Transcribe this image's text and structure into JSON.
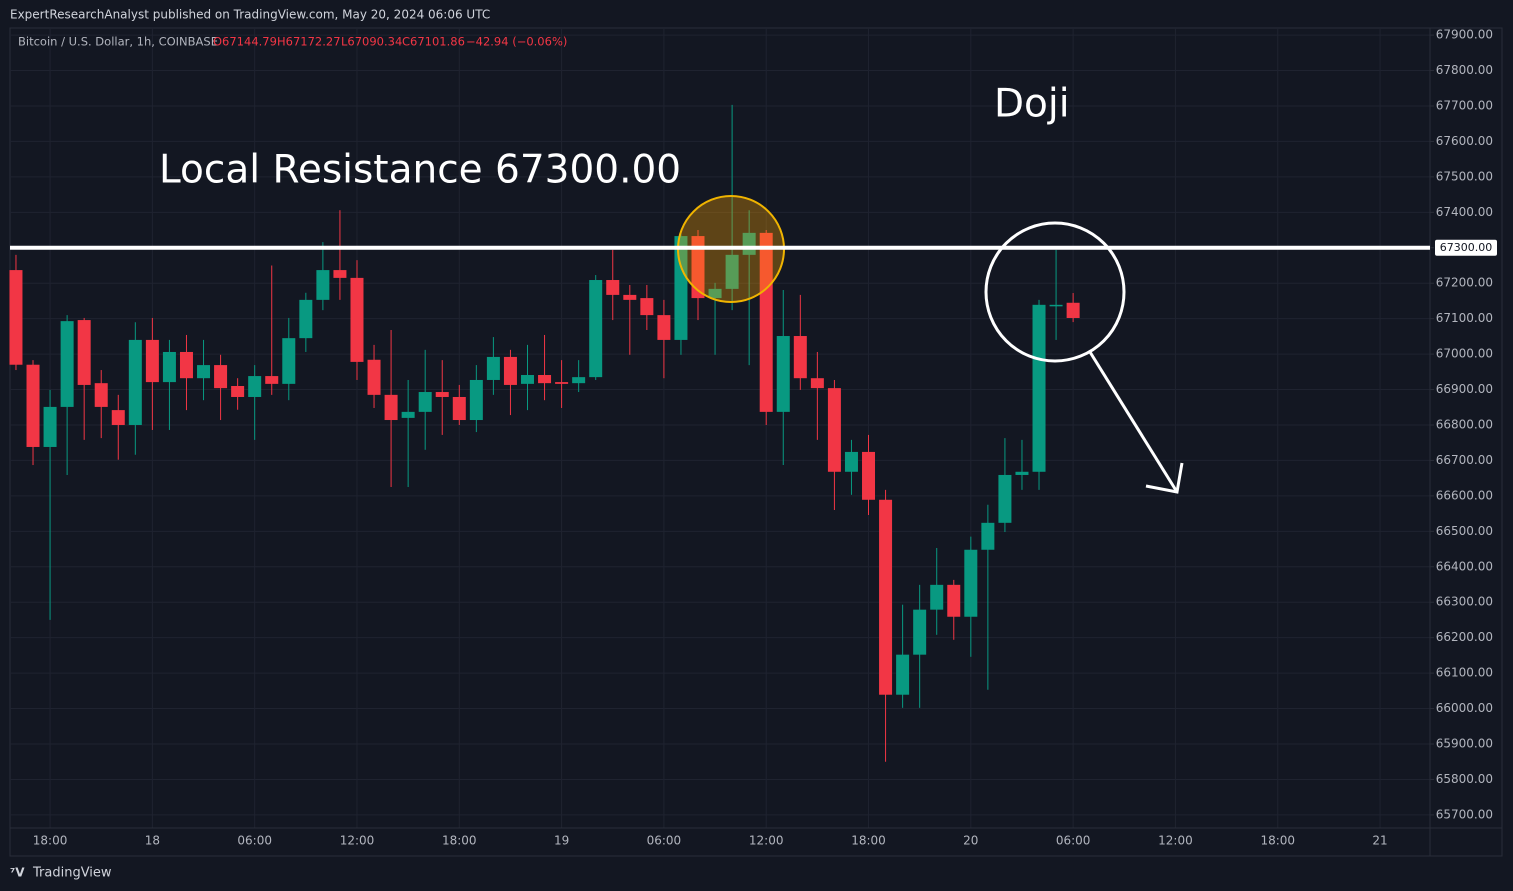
{
  "publisher": "ExpertResearchAnalyst published on TradingView.com, May 20, 2024 06:06 UTC",
  "brand": "TradingView",
  "chart_data": {
    "type": "candlestick",
    "symbol": "Bitcoin / U.S. Dollar, 1h, COINBASE",
    "ohlc_labels": [
      "O67144.79",
      "H67172.27",
      "L67090.34",
      "C67101.86",
      "−42.94 (−0.06%)"
    ],
    "up_color": "#089981",
    "down_color": "#f23645",
    "grid": true,
    "x": [
      0,
      1,
      2,
      3,
      4,
      5,
      6,
      7,
      8,
      9,
      10,
      11,
      12,
      13,
      14,
      15,
      16,
      17,
      18,
      19,
      20,
      21,
      22,
      23,
      24,
      25,
      26,
      27,
      28,
      29,
      30,
      31,
      32,
      33,
      34,
      35,
      36,
      37,
      38,
      39,
      40,
      41,
      42,
      43,
      44,
      45,
      46,
      47,
      48,
      49,
      50,
      51,
      52,
      53,
      54,
      55,
      56,
      57,
      58,
      59,
      60,
      61,
      62
    ],
    "open": [
      67237,
      66970,
      66738,
      66851,
      67096,
      66918,
      66842,
      66800,
      67040,
      66921,
      67006,
      66932,
      66969,
      66910,
      66879,
      66938,
      66916,
      67045,
      67153,
      67237,
      67215,
      66984,
      66885,
      66820,
      66837,
      66893,
      66879,
      66814,
      66927,
      66992,
      66916,
      66941,
      66921,
      66918,
      66935,
      67209,
      67167,
      67158,
      67110,
      67040,
      67333,
      67158,
      67184,
      67280,
      67342,
      66837,
      67051,
      66932,
      66904,
      66668,
      66724,
      66589,
      66039,
      66152,
      66279,
      66349,
      66259,
      66448,
      66524,
      66659,
      66668,
      67136,
      67144.79
    ],
    "high": [
      67280,
      66983,
      66899,
      67110,
      67102,
      66955,
      66885,
      67090,
      67102,
      67040,
      67054,
      67040,
      66998,
      66932,
      66969,
      67250,
      67102,
      67173,
      67316,
      67406,
      67265,
      67026,
      67068,
      66927,
      67012,
      66983,
      66913,
      66969,
      67048,
      67012,
      67026,
      67054,
      66983,
      66983,
      67223,
      67294,
      67195,
      67195,
      67153,
      67344,
      67350,
      67201,
      67703,
      67406,
      67350,
      67181,
      67167,
      67006,
      66927,
      66758,
      66772,
      66617,
      66293,
      66349,
      66453,
      66363,
      66485,
      66575,
      66763,
      66758,
      67153,
      67294,
      67172.27
    ],
    "low": [
      66955,
      66687,
      66250,
      66659,
      66758,
      66763,
      66702,
      66716,
      66786,
      66786,
      66842,
      66870,
      66814,
      66843,
      66758,
      66885,
      66870,
      67006,
      67124,
      67153,
      66927,
      66848,
      66625,
      66625,
      66730,
      66772,
      66800,
      66780,
      66885,
      66828,
      66842,
      66870,
      66848,
      66893,
      66927,
      67096,
      66998,
      67068,
      66932,
      66998,
      67096,
      66998,
      67124,
      66969,
      66800,
      66687,
      66899,
      66758,
      66560,
      66603,
      66546,
      65850,
      66002,
      66002,
      66208,
      66194,
      66146,
      66053,
      66498,
      66617,
      66617,
      67040,
      67090.34
    ],
    "close": [
      66970,
      66738,
      66851,
      67093,
      66913,
      66851,
      66800,
      67040,
      66921,
      67006,
      66932,
      66969,
      66904,
      66879,
      66938,
      66916,
      67045,
      67153,
      67237,
      67215,
      66978,
      66885,
      66814,
      66837,
      66893,
      66879,
      66814,
      66927,
      66992,
      66913,
      66941,
      66918,
      66916,
      66935,
      67209,
      67167,
      67153,
      67110,
      67040,
      67333,
      67158,
      67184,
      67280,
      67342,
      66837,
      67051,
      66932,
      66904,
      66668,
      66724,
      66589,
      66039,
      66152,
      66279,
      66349,
      66259,
      66448,
      66524,
      66659,
      66668,
      67139,
      67139,
      67101.86
    ],
    "xlim": [
      -0.35,
      82.93
    ],
    "xticks": [
      {
        "value": 2,
        "label": "18:00"
      },
      {
        "value": 8,
        "label": "18"
      },
      {
        "value": 14,
        "label": "06:00"
      },
      {
        "value": 20,
        "label": "12:00"
      },
      {
        "value": 26,
        "label": "18:00"
      },
      {
        "value": 32,
        "label": "19"
      },
      {
        "value": 38,
        "label": "06:00"
      },
      {
        "value": 44,
        "label": "12:00"
      },
      {
        "value": 50,
        "label": "18:00"
      },
      {
        "value": 56,
        "label": "20"
      },
      {
        "value": 62,
        "label": "06:00"
      },
      {
        "value": 68,
        "label": "12:00"
      },
      {
        "value": 74,
        "label": "18:00"
      },
      {
        "value": 80,
        "label": "21"
      }
    ],
    "ylim": [
      65663,
      67920
    ],
    "yticks": [
      {
        "value": 65700,
        "label": "65700.00"
      },
      {
        "value": 65800,
        "label": "65800.00"
      },
      {
        "value": 65900,
        "label": "65900.00"
      },
      {
        "value": 66000,
        "label": "66000.00"
      },
      {
        "value": 66100,
        "label": "66100.00"
      },
      {
        "value": 66200,
        "label": "66200.00"
      },
      {
        "value": 66300,
        "label": "66300.00"
      },
      {
        "value": 66400,
        "label": "66400.00"
      },
      {
        "value": 66500,
        "label": "66500.00"
      },
      {
        "value": 66600,
        "label": "66600.00"
      },
      {
        "value": 66700,
        "label": "66700.00"
      },
      {
        "value": 66800,
        "label": "66800.00"
      },
      {
        "value": 66900,
        "label": "66900.00"
      },
      {
        "value": 67000,
        "label": "67000.00"
      },
      {
        "value": 67100,
        "label": "67100.00"
      },
      {
        "value": 67200,
        "label": "67200.00"
      },
      {
        "value": 67300,
        "label": "67300.00"
      },
      {
        "value": 67400,
        "label": "67400.00"
      },
      {
        "value": 67500,
        "label": "67500.00"
      },
      {
        "value": 67600,
        "label": "67600.00"
      },
      {
        "value": 67700,
        "label": "67700.00"
      },
      {
        "value": 67800,
        "label": "67800.00"
      },
      {
        "value": 67900,
        "label": "67900.00"
      }
    ],
    "resistance": {
      "value": 67300,
      "label": "67300.00"
    },
    "annotations": [
      {
        "text": "Local Resistance 67300.00"
      },
      {
        "text": "Doji"
      }
    ]
  }
}
